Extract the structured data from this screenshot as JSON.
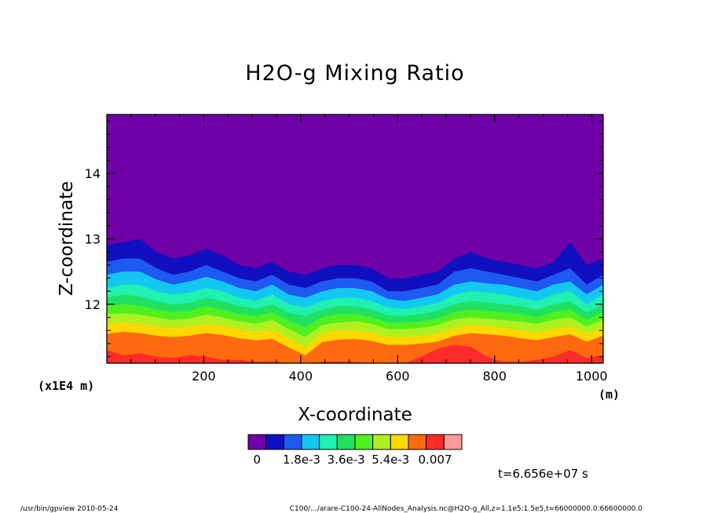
{
  "chart_data": {
    "type": "heatmap",
    "title": "H2O-g Mixing Ratio",
    "xlabel": "X-coordinate",
    "ylabel": "Z-coordinate",
    "x_unit": "(m)",
    "y_unit": "(x1E4 m)",
    "xlim": [
      0,
      1024
    ],
    "ylim": [
      11.1,
      14.9
    ],
    "x_ticks": [
      "200",
      "400",
      "600",
      "800",
      "1000"
    ],
    "y_ticks": [
      "12",
      "13",
      "14"
    ],
    "colorbar": {
      "colors": [
        "#7000a8",
        "#1010c0",
        "#1e5af0",
        "#12c8f0",
        "#20f0b0",
        "#20e060",
        "#50f020",
        "#b0f020",
        "#ffd800",
        "#ff6a10",
        "#ff2a2a",
        "#ff9a9a"
      ],
      "tick_labels": [
        "0",
        "1.8e-3",
        "3.6e-3",
        "5.4e-3",
        "0.007"
      ]
    },
    "contour_levels_z": [
      {
        "level": "1",
        "z": [
          12.9,
          12.95,
          13.0,
          12.8,
          12.7,
          12.75,
          12.85,
          12.75,
          12.6,
          12.55,
          12.65,
          12.5,
          12.45,
          12.55,
          12.6,
          12.6,
          12.55,
          12.4,
          12.4,
          12.45,
          12.5,
          12.7,
          12.8,
          12.7,
          12.65,
          12.6,
          12.55,
          12.65,
          12.95,
          12.6,
          12.7
        ]
      },
      {
        "level": "2",
        "z": [
          12.65,
          12.7,
          12.7,
          12.55,
          12.45,
          12.5,
          12.6,
          12.5,
          12.4,
          12.35,
          12.45,
          12.3,
          12.25,
          12.35,
          12.4,
          12.4,
          12.35,
          12.2,
          12.2,
          12.25,
          12.3,
          12.5,
          12.55,
          12.5,
          12.45,
          12.4,
          12.35,
          12.45,
          12.55,
          12.3,
          12.45
        ]
      },
      {
        "level": "3",
        "z": [
          12.45,
          12.5,
          12.5,
          12.38,
          12.3,
          12.35,
          12.42,
          12.35,
          12.25,
          12.2,
          12.3,
          12.15,
          12.1,
          12.2,
          12.25,
          12.25,
          12.2,
          12.08,
          12.05,
          12.1,
          12.15,
          12.3,
          12.35,
          12.32,
          12.3,
          12.25,
          12.2,
          12.3,
          12.35,
          12.15,
          12.3
        ]
      },
      {
        "level": "4",
        "z": [
          12.25,
          12.3,
          12.3,
          12.2,
          12.15,
          12.18,
          12.25,
          12.2,
          12.1,
          12.05,
          12.15,
          12.0,
          11.95,
          12.05,
          12.1,
          12.1,
          12.05,
          11.95,
          11.93,
          11.97,
          12.02,
          12.15,
          12.2,
          12.18,
          12.15,
          12.1,
          12.05,
          12.15,
          12.2,
          12.0,
          12.15
        ]
      },
      {
        "level": "5",
        "z": [
          12.1,
          12.15,
          12.12,
          12.05,
          12.0,
          12.02,
          12.1,
          12.05,
          11.97,
          11.93,
          12.0,
          11.87,
          11.82,
          11.92,
          11.97,
          11.97,
          11.92,
          11.83,
          11.82,
          11.85,
          11.9,
          12.0,
          12.05,
          12.03,
          12.0,
          11.97,
          11.92,
          12.0,
          12.05,
          11.87,
          12.0
        ]
      },
      {
        "level": "6",
        "z": [
          11.98,
          12.0,
          11.98,
          11.92,
          11.88,
          11.9,
          11.97,
          11.92,
          11.85,
          11.82,
          11.88,
          11.75,
          11.65,
          11.8,
          11.85,
          11.85,
          11.8,
          11.72,
          11.72,
          11.74,
          11.78,
          11.88,
          11.92,
          11.9,
          11.88,
          11.85,
          11.8,
          11.88,
          11.92,
          11.76,
          11.88
        ]
      },
      {
        "level": "7",
        "z": [
          11.85,
          11.86,
          11.84,
          11.8,
          11.76,
          11.78,
          11.84,
          11.8,
          11.74,
          11.7,
          11.76,
          11.62,
          11.5,
          11.68,
          11.72,
          11.74,
          11.7,
          11.62,
          11.62,
          11.64,
          11.68,
          11.77,
          11.8,
          11.78,
          11.76,
          11.73,
          11.7,
          11.76,
          11.8,
          11.66,
          11.76
        ]
      },
      {
        "level": "8",
        "z": [
          11.7,
          11.72,
          11.7,
          11.66,
          11.64,
          11.66,
          11.7,
          11.67,
          11.62,
          11.58,
          11.62,
          11.48,
          11.35,
          11.55,
          11.6,
          11.6,
          11.57,
          11.5,
          11.5,
          11.52,
          11.55,
          11.64,
          11.68,
          11.66,
          11.64,
          11.6,
          11.57,
          11.62,
          11.66,
          11.55,
          11.64
        ]
      },
      {
        "level": "9",
        "z": [
          11.55,
          11.58,
          11.56,
          11.52,
          11.5,
          11.52,
          11.56,
          11.53,
          11.48,
          11.45,
          11.47,
          11.34,
          11.22,
          11.42,
          11.46,
          11.47,
          11.44,
          11.38,
          11.38,
          11.4,
          11.43,
          11.52,
          11.56,
          11.54,
          11.52,
          11.48,
          11.45,
          11.5,
          11.54,
          11.43,
          11.52
        ]
      },
      {
        "level": "10",
        "z": [
          11.3,
          11.22,
          11.25,
          11.2,
          11.18,
          11.22,
          11.2,
          11.15,
          11.15,
          11.12,
          11.13,
          11.1,
          11.1,
          11.12,
          11.12,
          11.12,
          11.1,
          11.1,
          11.1,
          11.2,
          11.32,
          11.38,
          11.35,
          11.2,
          11.12,
          11.12,
          11.15,
          11.2,
          11.3,
          11.18,
          11.22
        ]
      }
    ]
  },
  "annotations": {
    "time": "t=6.656e+07 s",
    "footer_left": "/usr/bin/gpview  2010-05-24",
    "footer_right": "C100/.../arare-C100-24-AllNodes_Analysis.nc@H2O-g_All,z=1.1e5:1.5e5,t=66000000.0:66600000.0"
  }
}
